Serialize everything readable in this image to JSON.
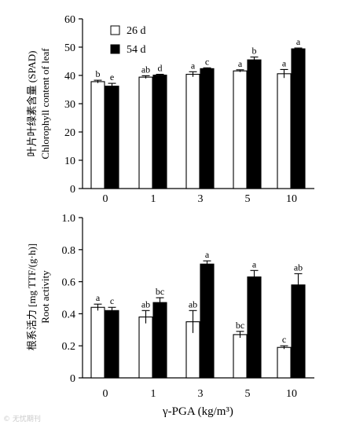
{
  "legend": {
    "items": [
      "26 d",
      "54 d"
    ]
  },
  "xlabel": "γ-PGA (kg/m³)",
  "watermark": "© 无忧期刊",
  "chart_data": [
    {
      "type": "bar",
      "categories": [
        "0",
        "1",
        "3",
        "5",
        "10"
      ],
      "ylabel_cn": "叶片叶绿素含量 (SPAD)",
      "ylabel_en": "Chlorophyll content of leaf",
      "ylim": [
        0,
        60
      ],
      "yticks": [
        "0",
        "10",
        "20",
        "30",
        "40",
        "50",
        "60"
      ],
      "series": [
        {
          "name": "26 d",
          "color": "#ffffff",
          "values": [
            37.8,
            39.4,
            40.4,
            41.6,
            40.6
          ],
          "errors": [
            0.5,
            0.5,
            0.9,
            0.4,
            1.5
          ],
          "sig": [
            "b",
            "ab",
            "a",
            "a",
            "a"
          ]
        },
        {
          "name": "54 d",
          "color": "#000000",
          "values": [
            36.2,
            40.1,
            42.4,
            45.5,
            49.4
          ],
          "errors": [
            1.0,
            0.3,
            0.3,
            1.0,
            0.3
          ],
          "sig": [
            "e",
            "d",
            "c",
            "b",
            "a"
          ]
        }
      ]
    },
    {
      "type": "bar",
      "categories": [
        "0",
        "1",
        "3",
        "5",
        "10"
      ],
      "ylabel_cn": "根系活力 [mg TTF/(g·h)]",
      "ylabel_en": "Root activity",
      "ylim": [
        0,
        1.0
      ],
      "yticks": [
        "0",
        "0.2",
        "0.4",
        "0.6",
        "0.8",
        "1.0"
      ],
      "series": [
        {
          "name": "26 d",
          "color": "#ffffff",
          "values": [
            0.44,
            0.38,
            0.35,
            0.27,
            0.19
          ],
          "errors": [
            0.02,
            0.04,
            0.07,
            0.02,
            0.01
          ],
          "sig": [
            "a",
            "ab",
            "ab",
            "bc",
            "c"
          ]
        },
        {
          "name": "54 d",
          "color": "#000000",
          "values": [
            0.42,
            0.47,
            0.71,
            0.63,
            0.58
          ],
          "errors": [
            0.02,
            0.03,
            0.02,
            0.04,
            0.07
          ],
          "sig": [
            "c",
            "bc",
            "a",
            "a",
            "ab"
          ]
        }
      ]
    }
  ]
}
